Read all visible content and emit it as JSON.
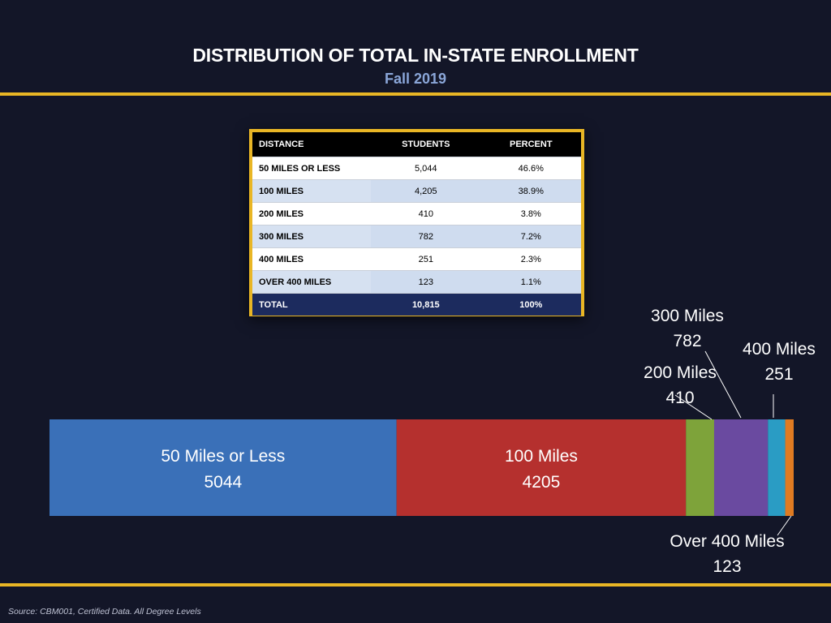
{
  "title": "DISTRIBUTION OF TOTAL IN-STATE ENROLLMENT",
  "subtitle": "Fall 2019",
  "source": "Source: CBM001, Certified Data. All Degree Levels",
  "table": {
    "headers": [
      "DISTANCE",
      "STUDENTS",
      "PERCENT"
    ],
    "rows": [
      [
        "50 MILES OR LESS",
        "5,044",
        "46.6%"
      ],
      [
        "100 MILES",
        "4,205",
        "38.9%"
      ],
      [
        "200 MILES",
        "410",
        "3.8%"
      ],
      [
        "300 MILES",
        "782",
        "7.2%"
      ],
      [
        "400 MILES",
        "251",
        "2.3%"
      ],
      [
        "OVER 400 MILES",
        "123",
        "1.1%"
      ]
    ],
    "total": [
      "TOTAL",
      "10,815",
      "100%"
    ]
  },
  "colors": {
    "background": "#131628",
    "accent_gold": "#e9b625",
    "subtitle_blue": "#8aa6d8"
  },
  "chart_data": {
    "type": "bar",
    "orientation": "horizontal-stacked",
    "categories": [
      "50 Miles or Less",
      "100 Miles",
      "200 Miles",
      "300 Miles",
      "400 Miles",
      "Over 400 Miles"
    ],
    "values": [
      5044,
      4205,
      410,
      782,
      251,
      123
    ],
    "colors": [
      "#3a70b8",
      "#b5302e",
      "#7ea33a",
      "#6a4aa0",
      "#2a9cc4",
      "#e07b22"
    ],
    "label_position": [
      "inside",
      "inside",
      "above",
      "above",
      "above",
      "below"
    ],
    "title": "DISTRIBUTION OF TOTAL IN-STATE ENROLLMENT",
    "subtitle": "Fall 2019",
    "legend": "none",
    "grid": false
  }
}
